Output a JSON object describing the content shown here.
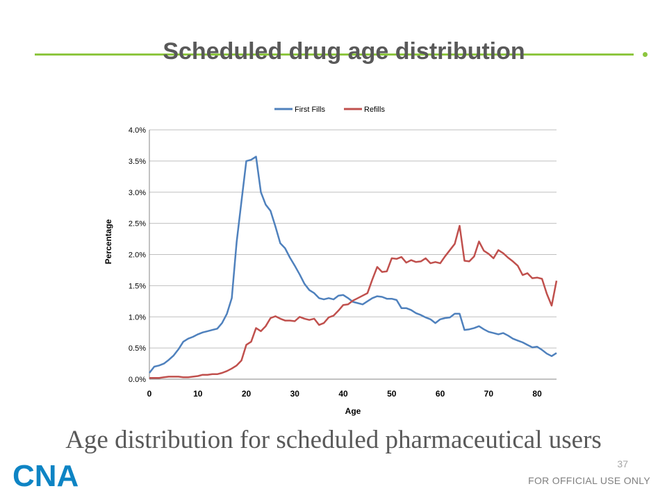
{
  "slide": {
    "title": "Scheduled drug age distribution",
    "caption": "Age distribution for scheduled pharmaceutical users",
    "slide_number": "37",
    "footer": "FOR OFFICIAL USE ONLY",
    "logo_text": "CNA",
    "accent_color": "#8dc63f",
    "logo_color": "#0e84c4"
  },
  "chart_data": {
    "type": "line",
    "title": "",
    "xlabel": "Age",
    "ylabel": "Percentage",
    "xlim": [
      0,
      84
    ],
    "ylim": [
      0,
      4.0
    ],
    "x_ticks": [
      0,
      10,
      20,
      30,
      40,
      50,
      60,
      70,
      80
    ],
    "y_ticks": [
      0,
      0.5,
      1.0,
      1.5,
      2.0,
      2.5,
      3.0,
      3.5,
      4.0
    ],
    "y_tick_labels": [
      "0.0%",
      "0.5%",
      "1.0%",
      "1.5%",
      "2.0%",
      "2.5%",
      "3.0%",
      "3.5%",
      "4.0%"
    ],
    "grid": "horizontal",
    "legend_position": "top",
    "series": [
      {
        "name": "First Fills",
        "color": "#4f81bd",
        "x": [
          0,
          1,
          2,
          3,
          4,
          5,
          6,
          7,
          8,
          9,
          10,
          11,
          12,
          13,
          14,
          15,
          16,
          17,
          18,
          19,
          20,
          21,
          22,
          23,
          24,
          25,
          26,
          27,
          28,
          29,
          30,
          31,
          32,
          33,
          34,
          35,
          36,
          37,
          38,
          39,
          40,
          41,
          42,
          43,
          44,
          45,
          46,
          47,
          48,
          49,
          50,
          51,
          52,
          53,
          54,
          55,
          56,
          57,
          58,
          59,
          60,
          61,
          62,
          63,
          64,
          65,
          66,
          67,
          68,
          69,
          70,
          71,
          72,
          73,
          74,
          75,
          76,
          77,
          78,
          79,
          80,
          81,
          82,
          83,
          84
        ],
        "values": [
          0.1,
          0.2,
          0.22,
          0.25,
          0.31,
          0.38,
          0.48,
          0.6,
          0.65,
          0.68,
          0.72,
          0.75,
          0.77,
          0.79,
          0.81,
          0.9,
          1.05,
          1.3,
          2.2,
          2.85,
          3.5,
          3.52,
          3.57,
          3.0,
          2.8,
          2.7,
          2.45,
          2.18,
          2.1,
          1.95,
          1.82,
          1.68,
          1.53,
          1.43,
          1.38,
          1.3,
          1.28,
          1.3,
          1.28,
          1.34,
          1.35,
          1.3,
          1.24,
          1.22,
          1.2,
          1.25,
          1.3,
          1.33,
          1.32,
          1.29,
          1.29,
          1.27,
          1.14,
          1.14,
          1.11,
          1.06,
          1.03,
          0.99,
          0.96,
          0.9,
          0.96,
          0.98,
          0.99,
          1.05,
          1.05,
          0.79,
          0.8,
          0.82,
          0.85,
          0.8,
          0.76,
          0.74,
          0.72,
          0.74,
          0.7,
          0.65,
          0.62,
          0.59,
          0.55,
          0.51,
          0.52,
          0.47,
          0.41,
          0.37,
          0.42
        ]
      },
      {
        "name": "Refills",
        "color": "#c0504d",
        "x": [
          0,
          1,
          2,
          3,
          4,
          5,
          6,
          7,
          8,
          9,
          10,
          11,
          12,
          13,
          14,
          15,
          16,
          17,
          18,
          19,
          20,
          21,
          22,
          23,
          24,
          25,
          26,
          27,
          28,
          29,
          30,
          31,
          32,
          33,
          34,
          35,
          36,
          37,
          38,
          39,
          40,
          41,
          42,
          43,
          44,
          45,
          46,
          47,
          48,
          49,
          50,
          51,
          52,
          53,
          54,
          55,
          56,
          57,
          58,
          59,
          60,
          61,
          62,
          63,
          64,
          65,
          66,
          67,
          68,
          69,
          70,
          71,
          72,
          73,
          74,
          75,
          76,
          77,
          78,
          79,
          80,
          81,
          82,
          83,
          84
        ],
        "values": [
          0.02,
          0.02,
          0.02,
          0.03,
          0.04,
          0.04,
          0.04,
          0.03,
          0.03,
          0.04,
          0.05,
          0.07,
          0.07,
          0.08,
          0.08,
          0.1,
          0.13,
          0.17,
          0.22,
          0.3,
          0.55,
          0.6,
          0.82,
          0.77,
          0.85,
          0.98,
          1.01,
          0.97,
          0.94,
          0.94,
          0.93,
          1.0,
          0.97,
          0.95,
          0.97,
          0.87,
          0.9,
          0.99,
          1.02,
          1.1,
          1.19,
          1.2,
          1.26,
          1.3,
          1.34,
          1.38,
          1.6,
          1.8,
          1.72,
          1.73,
          1.94,
          1.93,
          1.96,
          1.87,
          1.91,
          1.88,
          1.89,
          1.94,
          1.86,
          1.88,
          1.86,
          1.97,
          2.07,
          2.17,
          2.46,
          1.9,
          1.89,
          1.97,
          2.21,
          2.06,
          2.01,
          1.94,
          2.07,
          2.02,
          1.95,
          1.89,
          1.82,
          1.67,
          1.7,
          1.62,
          1.63,
          1.61,
          1.37,
          1.18,
          1.58
        ]
      }
    ]
  }
}
